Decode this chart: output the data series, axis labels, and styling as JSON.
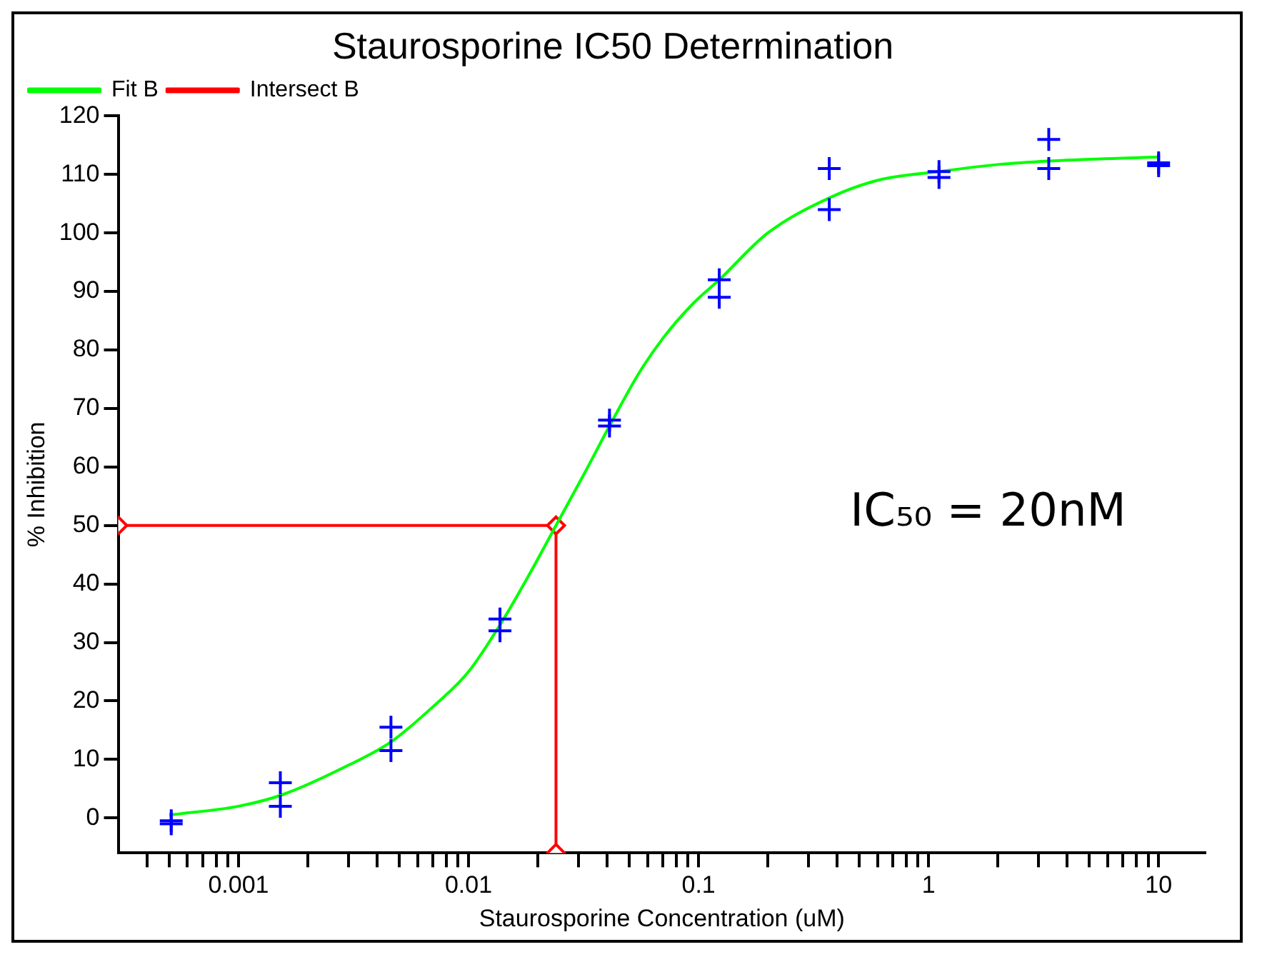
{
  "chart_data": {
    "type": "scatter",
    "title": "Staurosporine IC50 Determination",
    "xlabel": "Staurosporine Concentration (uM)",
    "ylabel": "% Inhibition",
    "log": "x",
    "grid": false,
    "legend": "top left",
    "xlim": [
      0.0003,
      16
    ],
    "ylim": [
      -6,
      120
    ],
    "xticks": [
      {
        "value": 0.0004,
        "label": null
      },
      {
        "value": 0.0005,
        "label": null
      },
      {
        "value": 0.0006,
        "label": null
      },
      {
        "value": 0.0007,
        "label": null
      },
      {
        "value": 0.0008,
        "label": null
      },
      {
        "value": 0.0009,
        "label": null
      },
      0.001,
      {
        "value": 0.002,
        "label": null
      },
      {
        "value": 0.003,
        "label": null
      },
      {
        "value": 0.004,
        "label": null
      },
      {
        "value": 0.005,
        "label": null
      },
      {
        "value": 0.006,
        "label": null
      },
      {
        "value": 0.007,
        "label": null
      },
      {
        "value": 0.008,
        "label": null
      },
      {
        "value": 0.009,
        "label": null
      },
      0.01,
      {
        "value": 0.02,
        "label": null
      },
      {
        "value": 0.03,
        "label": null
      },
      {
        "value": 0.04,
        "label": null
      },
      {
        "value": 0.05,
        "label": null
      },
      {
        "value": 0.06,
        "label": null
      },
      {
        "value": 0.07,
        "label": null
      },
      {
        "value": 0.08,
        "label": null
      },
      {
        "value": 0.09,
        "label": null
      },
      0.1,
      {
        "value": 0.2,
        "label": null
      },
      {
        "value": 0.3,
        "label": null
      },
      {
        "value": 0.4,
        "label": null
      },
      {
        "value": 0.5,
        "label": null
      },
      {
        "value": 0.6,
        "label": null
      },
      {
        "value": 0.7,
        "label": null
      },
      {
        "value": 0.8,
        "label": null
      },
      {
        "value": 0.9,
        "label": null
      },
      1,
      {
        "value": 2,
        "label": null
      },
      {
        "value": 3,
        "label": null
      },
      {
        "value": 4,
        "label": null
      },
      {
        "value": 5,
        "label": null
      },
      {
        "value": 6,
        "label": null
      },
      {
        "value": 7,
        "label": null
      },
      {
        "value": 8,
        "label": null
      },
      {
        "value": 9,
        "label": null
      },
      10
    ],
    "yticks": [
      0,
      10,
      20,
      30,
      40,
      50,
      60,
      70,
      80,
      90,
      100,
      110,
      120
    ],
    "annotations": [
      "IC₅₀ = 20nM"
    ],
    "series": [
      {
        "type": "scatter",
        "color": "#0000ff",
        "marker": "cross",
        "x": [
          0.00051,
          0.00051,
          0.00152,
          0.00152,
          0.0046,
          0.0046,
          0.0137,
          0.0137,
          0.041,
          0.041,
          0.123,
          0.123,
          0.37,
          0.37,
          1.11,
          1.11,
          3.33,
          3.33,
          10,
          10
        ],
        "values": [
          -1,
          -0.5,
          6,
          2,
          15.5,
          11.5,
          34,
          32,
          68,
          67,
          92,
          89,
          111,
          104,
          110.5,
          109.5,
          116,
          111,
          112,
          111.5
        ]
      },
      {
        "type": "line",
        "name": "Fit B",
        "color": "#00ff00",
        "marker": "none",
        "line_style": "solid",
        "x": [
          0.0005,
          0.001,
          0.00156,
          0.003,
          0.0046,
          0.007,
          0.01,
          0.0137,
          0.018,
          0.024,
          0.032,
          0.041,
          0.055,
          0.07,
          0.095,
          0.123,
          0.2,
          0.37,
          0.6,
          1.11,
          2,
          3.33,
          10
        ],
        "values": [
          0.5,
          2,
          4,
          9,
          13,
          19,
          25,
          33,
          41,
          50,
          59,
          67,
          76,
          82,
          88,
          92,
          100,
          106,
          109,
          110.5,
          111.7,
          112.3,
          113
        ]
      },
      {
        "type": "line",
        "name": "Intersect B",
        "color": "#ff0000",
        "marker": "diamond",
        "line_style": "solid",
        "x": [
          0.0003,
          0.024,
          0.024
        ],
        "values": [
          50,
          50,
          -6
        ]
      }
    ]
  }
}
